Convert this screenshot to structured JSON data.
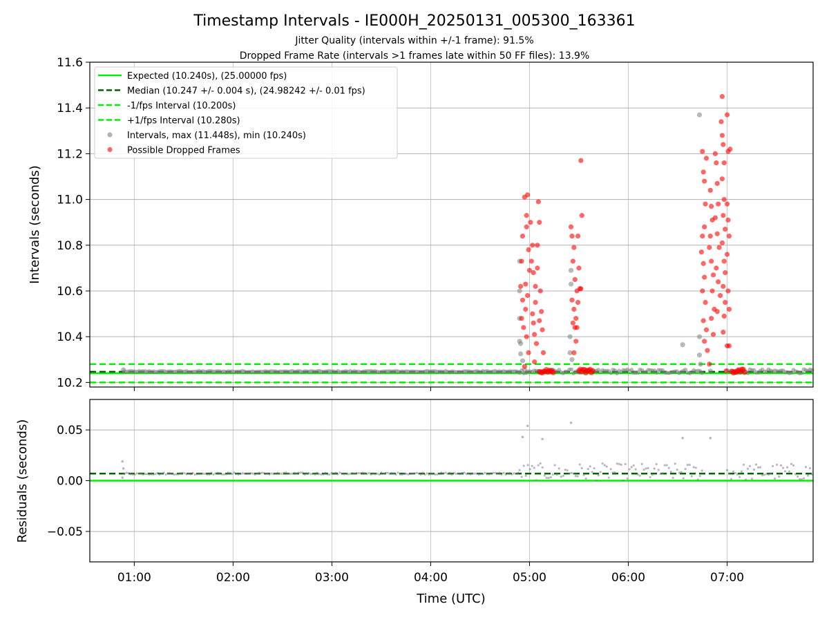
{
  "figure": {
    "title": "Timestamp Intervals - IE000H_20250131_005300_163361",
    "subtitle_1": "Jitter Quality (intervals within +/-1 frame): 91.5%",
    "subtitle_2": "Dropped Frame Rate (intervals >1 frames late within 50 FF files): 13.9%"
  },
  "chart_data": [
    {
      "type": "scatter",
      "panel": "intervals",
      "ylabel": "Intervals (seconds)",
      "ylim": [
        10.18,
        11.6
      ],
      "yticks": [
        10.2,
        10.4,
        10.6,
        10.8,
        11.0,
        11.2,
        11.4,
        11.6
      ],
      "ytick_labels": [
        "10.2",
        "10.4",
        "10.6",
        "10.8",
        "11.0",
        "11.2",
        "11.4",
        "11.6"
      ],
      "xlim_hours": [
        0.55,
        7.87
      ],
      "grid": true,
      "legend_position": "top-left",
      "colors": {
        "expected": "#00ee00",
        "median": "#006400",
        "fps_bounds": "#00ee00",
        "intervals": "#808080",
        "dropped": "#ff0000"
      },
      "reference_lines": [
        {
          "name": "Expected (10.240s), (25.00000 fps)",
          "y": 10.24,
          "style": "solid",
          "color": "#00ee00"
        },
        {
          "name": "Median (10.247 +/- 0.004 s), (24.98242 +/- 0.01 fps)",
          "y": 10.247,
          "style": "dashed",
          "color": "#006400"
        },
        {
          "name": "-1/fps Interval (10.200s)",
          "y": 10.2,
          "style": "dashed",
          "color": "#00ee00"
        },
        {
          "name": "+1/fps Interval (10.280s)",
          "y": 10.28,
          "style": "dashed",
          "color": "#00ee00"
        }
      ],
      "series": [
        {
          "name": "Intervals, max (11.448s), min (10.240s)",
          "color": "#808080",
          "baseline_bands": [
            {
              "start": 0.9,
              "end": 4.9,
              "low": 10.245,
              "high": 10.25
            },
            {
              "start": 4.9,
              "end": 6.75,
              "low": 10.24,
              "high": 10.257
            },
            {
              "start": 7.0,
              "end": 7.87,
              "low": 10.24,
              "high": 10.257
            }
          ],
          "points": [
            [
              0.89,
              10.255
            ],
            [
              4.9,
              10.73
            ],
            [
              4.9,
              10.6
            ],
            [
              4.9,
              10.48
            ],
            [
              4.9,
              10.38
            ],
            [
              4.91,
              10.37
            ],
            [
              4.91,
              10.325
            ],
            [
              4.93,
              10.295
            ],
            [
              4.95,
              10.255
            ],
            [
              5.41,
              10.4
            ],
            [
              5.42,
              10.69
            ],
            [
              5.42,
              10.63
            ],
            [
              5.41,
              10.33
            ],
            [
              5.43,
              10.3
            ],
            [
              6.55,
              10.365
            ],
            [
              6.72,
              11.37
            ],
            [
              6.72,
              10.4
            ],
            [
              6.72,
              10.32
            ],
            [
              6.73,
              10.28
            ],
            [
              6.83,
              10.25
            ]
          ]
        },
        {
          "name": "Possible Dropped Frames",
          "color": "#ff0000",
          "dense_bands": [
            {
              "start": 5.1,
              "end": 5.25,
              "y": 10.25
            },
            {
              "start": 5.5,
              "end": 5.65,
              "y": 10.25
            },
            {
              "start": 7.05,
              "end": 7.18,
              "y": 10.25
            }
          ],
          "points": [
            [
              4.92,
              10.73
            ],
            [
              4.93,
              10.84
            ],
            [
              4.95,
              11.01
            ],
            [
              4.97,
              10.93
            ],
            [
              4.96,
              10.63
            ],
            [
              4.93,
              10.56
            ],
            [
              4.92,
              10.48
            ],
            [
              4.94,
              10.44
            ],
            [
              4.97,
              10.88
            ],
            [
              4.99,
              10.78
            ],
            [
              5.0,
              10.69
            ],
            [
              4.98,
              10.58
            ],
            [
              4.96,
              10.52
            ],
            [
              4.97,
              10.4
            ],
            [
              4.99,
              10.33
            ],
            [
              5.01,
              10.9
            ],
            [
              5.03,
              10.8
            ],
            [
              5.02,
              10.73
            ],
            [
              5.04,
              10.68
            ],
            [
              5.06,
              10.62
            ],
            [
              5.03,
              10.5
            ],
            [
              5.04,
              10.46
            ],
            [
              5.05,
              10.41
            ],
            [
              5.07,
              10.37
            ],
            [
              5.08,
              10.7
            ],
            [
              5.09,
              10.99
            ],
            [
              5.1,
              10.9
            ],
            [
              5.08,
              10.8
            ],
            [
              5.11,
              10.6
            ],
            [
              5.12,
              10.51
            ],
            [
              5.1,
              10.47
            ],
            [
              5.13,
              10.43
            ],
            [
              5.14,
              10.33
            ],
            [
              4.91,
              10.62
            ],
            [
              4.95,
              10.27
            ],
            [
              4.98,
              11.02
            ],
            [
              5.05,
              10.29
            ],
            [
              5.06,
              10.55
            ],
            [
              5.42,
              10.88
            ],
            [
              5.43,
              10.84
            ],
            [
              5.45,
              10.79
            ],
            [
              5.44,
              10.73
            ],
            [
              5.46,
              10.65
            ],
            [
              5.43,
              10.56
            ],
            [
              5.45,
              10.52
            ],
            [
              5.44,
              10.46
            ],
            [
              5.46,
              10.44
            ],
            [
              5.47,
              10.38
            ],
            [
              5.48,
              10.6
            ],
            [
              5.49,
              10.84
            ],
            [
              5.5,
              10.7
            ],
            [
              5.51,
              10.61
            ],
            [
              5.49,
              10.55
            ],
            [
              5.48,
              10.44
            ],
            [
              5.52,
              11.17
            ],
            [
              5.53,
              10.93
            ],
            [
              5.52,
              10.61
            ],
            [
              5.45,
              10.33
            ],
            [
              5.47,
              10.48
            ],
            [
              6.75,
              11.21
            ],
            [
              6.76,
              11.12
            ],
            [
              6.77,
              11.08
            ],
            [
              6.79,
              11.18
            ],
            [
              6.78,
              10.98
            ],
            [
              6.77,
              10.88
            ],
            [
              6.75,
              10.84
            ],
            [
              6.74,
              10.77
            ],
            [
              6.76,
              10.72
            ],
            [
              6.77,
              10.66
            ],
            [
              6.75,
              10.6
            ],
            [
              6.78,
              10.55
            ],
            [
              6.76,
              10.47
            ],
            [
              6.79,
              10.43
            ],
            [
              6.77,
              10.38
            ],
            [
              6.8,
              10.34
            ],
            [
              6.82,
              10.28
            ],
            [
              6.83,
              11.04
            ],
            [
              6.84,
              10.97
            ],
            [
              6.85,
              10.91
            ],
            [
              6.83,
              10.84
            ],
            [
              6.82,
              10.79
            ],
            [
              6.84,
              10.73
            ],
            [
              6.86,
              10.67
            ],
            [
              6.85,
              10.6
            ],
            [
              6.87,
              10.52
            ],
            [
              6.84,
              10.48
            ],
            [
              6.86,
              10.41
            ],
            [
              6.88,
              11.2
            ],
            [
              6.89,
              11.16
            ],
            [
              6.9,
              11.07
            ],
            [
              6.91,
              10.98
            ],
            [
              6.88,
              10.92
            ],
            [
              6.9,
              10.85
            ],
            [
              6.92,
              10.79
            ],
            [
              6.89,
              10.7
            ],
            [
              6.91,
              10.64
            ],
            [
              6.93,
              10.58
            ],
            [
              6.9,
              10.51
            ],
            [
              6.95,
              11.45
            ],
            [
              6.94,
              11.34
            ],
            [
              6.95,
              11.28
            ],
            [
              6.96,
              11.24
            ],
            [
              6.97,
              11.16
            ],
            [
              6.95,
              11.09
            ],
            [
              6.97,
              11.0
            ],
            [
              6.96,
              10.93
            ],
            [
              6.98,
              10.87
            ],
            [
              6.95,
              10.81
            ],
            [
              6.97,
              10.73
            ],
            [
              6.98,
              10.68
            ],
            [
              6.96,
              10.62
            ],
            [
              6.98,
              10.55
            ],
            [
              6.97,
              10.49
            ],
            [
              6.96,
              10.42
            ],
            [
              7.0,
              11.37
            ],
            [
              7.01,
              11.21
            ],
            [
              7.0,
              10.98
            ],
            [
              7.01,
              10.91
            ],
            [
              7.02,
              10.84
            ],
            [
              7.0,
              10.76
            ],
            [
              7.01,
              10.6
            ],
            [
              7.02,
              10.52
            ],
            [
              7.0,
              10.36
            ],
            [
              6.99,
              10.25
            ],
            [
              7.02,
              10.36
            ],
            [
              7.03,
              11.22
            ]
          ]
        }
      ]
    },
    {
      "type": "scatter",
      "panel": "residuals",
      "xlabel": "Time (UTC)",
      "ylabel": "Residuals (seconds)",
      "ylim": [
        -0.08,
        0.08
      ],
      "yticks": [
        0.05,
        0.0,
        -0.05
      ],
      "ytick_labels": [
        "0.05",
        "0.00",
        "−0.05"
      ],
      "xlim_hours": [
        0.55,
        7.87
      ],
      "xticks_hours": [
        1,
        2,
        3,
        4,
        5,
        6,
        7
      ],
      "xtick_labels": [
        "01:00",
        "02:00",
        "03:00",
        "04:00",
        "05:00",
        "06:00",
        "07:00"
      ],
      "grid": true,
      "reference_lines": [
        {
          "y": 0.0,
          "style": "solid",
          "color": "#00ee00"
        },
        {
          "y": 0.007,
          "style": "dashed",
          "color": "#006400"
        }
      ],
      "series": [
        {
          "name": "",
          "color": "#808080",
          "baseline_bands": [
            {
              "start": 0.9,
              "end": 4.9,
              "low": 0.006,
              "high": 0.008
            },
            {
              "start": 4.9,
              "end": 6.75,
              "low": 0.0,
              "high": 0.017
            },
            {
              "start": 7.0,
              "end": 7.87,
              "low": 0.0,
              "high": 0.017
            }
          ],
          "points": [
            [
              0.88,
              0.019
            ],
            [
              0.89,
              0.012
            ],
            [
              0.88,
              0.003
            ],
            [
              4.93,
              0.043
            ],
            [
              4.98,
              0.054
            ],
            [
              5.13,
              0.041
            ],
            [
              5.42,
              0.057
            ],
            [
              6.55,
              0.042
            ],
            [
              6.83,
              0.042
            ]
          ]
        }
      ]
    }
  ]
}
